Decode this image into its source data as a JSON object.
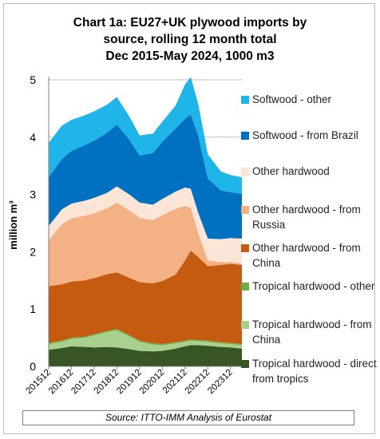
{
  "title_lines": [
    "Chart 1a: EU27+UK plywood imports by",
    "source, rolling 12 month total",
    "Dec 2015-May 2024, 1000 m3"
  ],
  "source_text": "Source: ITTO-IMM Analysis of Eurostat",
  "chart_data": {
    "type": "area",
    "stacked": true,
    "title": "Chart 1a: EU27+UK plywood imports by source, rolling 12 month total Dec 2015-May 2024, 1000 m3",
    "xlabel": "",
    "ylabel": "million m³",
    "ylim": [
      0,
      5
    ],
    "yticks": [
      0,
      1,
      2,
      3,
      4,
      5
    ],
    "grid": "horizontal",
    "legend": "right",
    "x_tick_labels": [
      "201512",
      "201612",
      "201712",
      "201812",
      "201912",
      "202012",
      "202112",
      "202212",
      "202312"
    ],
    "x": [
      2015.92,
      2016.5,
      2016.92,
      2017.5,
      2017.92,
      2018.5,
      2018.92,
      2019.5,
      2019.92,
      2020.5,
      2020.92,
      2021.5,
      2021.92,
      2022.17,
      2022.5,
      2022.92,
      2023.5,
      2023.92,
      2024.42
    ],
    "series": [
      {
        "name": "Tropical hardwood - direct from tropics",
        "color": "#375623",
        "values": [
          0.29,
          0.32,
          0.35,
          0.34,
          0.33,
          0.34,
          0.33,
          0.3,
          0.27,
          0.26,
          0.27,
          0.31,
          0.35,
          0.37,
          0.37,
          0.36,
          0.34,
          0.33,
          0.31
        ]
      },
      {
        "name": "Tropical hardwood - from China",
        "color": "#a9d18e",
        "values": [
          0.1,
          0.11,
          0.13,
          0.16,
          0.21,
          0.26,
          0.3,
          0.22,
          0.16,
          0.12,
          0.1,
          0.09,
          0.08,
          0.08,
          0.07,
          0.07,
          0.06,
          0.06,
          0.06
        ]
      },
      {
        "name": "Tropical hardwood - other",
        "color": "#70ad47",
        "values": [
          0.02,
          0.02,
          0.02,
          0.02,
          0.02,
          0.02,
          0.02,
          0.02,
          0.02,
          0.02,
          0.02,
          0.02,
          0.02,
          0.02,
          0.02,
          0.02,
          0.02,
          0.02,
          0.02
        ]
      },
      {
        "name": "Other hardwood - from China",
        "color": "#c55a11",
        "values": [
          0.99,
          0.98,
          0.98,
          0.98,
          0.98,
          0.99,
          0.99,
          1.0,
          1.02,
          1.05,
          1.1,
          1.18,
          1.4,
          1.55,
          1.45,
          1.3,
          1.35,
          1.38,
          1.38
        ]
      },
      {
        "name": "Other hardwood - from Russia",
        "color": "#f4b183",
        "values": [
          0.8,
          1.05,
          1.1,
          1.13,
          1.13,
          1.15,
          1.22,
          1.17,
          1.12,
          1.1,
          1.15,
          1.15,
          0.95,
          0.75,
          0.42,
          0.1,
          0.05,
          0.03,
          0.02
        ]
      },
      {
        "name": "Other hardwood",
        "color": "#fbe5d6",
        "values": [
          0.25,
          0.26,
          0.26,
          0.26,
          0.27,
          0.27,
          0.28,
          0.28,
          0.27,
          0.27,
          0.28,
          0.3,
          0.32,
          0.33,
          0.35,
          0.38,
          0.4,
          0.42,
          0.44
        ]
      },
      {
        "name": "Softwood - from Brazil",
        "color": "#0070c0",
        "values": [
          0.85,
          0.88,
          0.92,
          0.97,
          1.0,
          1.05,
          1.08,
          0.95,
          0.82,
          0.9,
          1.0,
          1.1,
          1.2,
          1.3,
          1.35,
          1.05,
          0.85,
          0.8,
          0.78
        ]
      },
      {
        "name": "Softwood - other",
        "color": "#1fb5e8",
        "values": [
          0.6,
          0.58,
          0.54,
          0.52,
          0.51,
          0.49,
          0.48,
          0.4,
          0.35,
          0.34,
          0.35,
          0.4,
          0.6,
          0.65,
          0.55,
          0.42,
          0.33,
          0.3,
          0.29
        ]
      }
    ]
  }
}
